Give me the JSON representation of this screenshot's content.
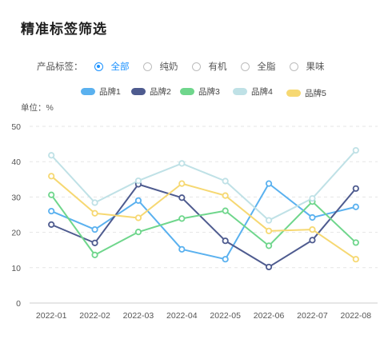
{
  "page": {
    "title": "精准标签筛选"
  },
  "filter": {
    "label": "产品标签：",
    "options": [
      {
        "label": "全部",
        "checked": true
      },
      {
        "label": "纯奶",
        "checked": false
      },
      {
        "label": "有机",
        "checked": false
      },
      {
        "label": "全脂",
        "checked": false
      },
      {
        "label": "果味",
        "checked": false
      }
    ],
    "accent_color": "#1890ff"
  },
  "chart_data": {
    "type": "line",
    "unit_label": "单位：%",
    "categories": [
      "2022-01",
      "2022-02",
      "2022-03",
      "2022-04",
      "2022-05",
      "2022-06",
      "2022-07",
      "2022-08"
    ],
    "ylim": [
      0,
      50
    ],
    "yticks": [
      0,
      10,
      20,
      30,
      40,
      50
    ],
    "grid": true,
    "legend_position": "top",
    "series": [
      {
        "name": "品牌1",
        "color": "#5ab1ef",
        "values": [
          26,
          20.8,
          29,
          15.2,
          12.4,
          33.8,
          24.2,
          27.2
        ]
      },
      {
        "name": "品牌2",
        "color": "#4e5b8f",
        "values": [
          22.2,
          17,
          33.6,
          29.8,
          17.6,
          10.2,
          17.8,
          32.4
        ]
      },
      {
        "name": "品牌3",
        "color": "#6fd68c",
        "values": [
          30.6,
          13.6,
          20.1,
          23.9,
          26.1,
          16.2,
          28.7,
          17.1
        ]
      },
      {
        "name": "品牌4",
        "color": "#bfe1e6",
        "values": [
          41.8,
          28.4,
          34.6,
          39.5,
          34.5,
          23.4,
          29.6,
          43.2
        ]
      },
      {
        "name": "品牌5",
        "color": "#f6d872",
        "values": [
          35.9,
          25.4,
          24.1,
          33.8,
          30.4,
          20.4,
          20.8,
          12.4
        ]
      }
    ]
  }
}
